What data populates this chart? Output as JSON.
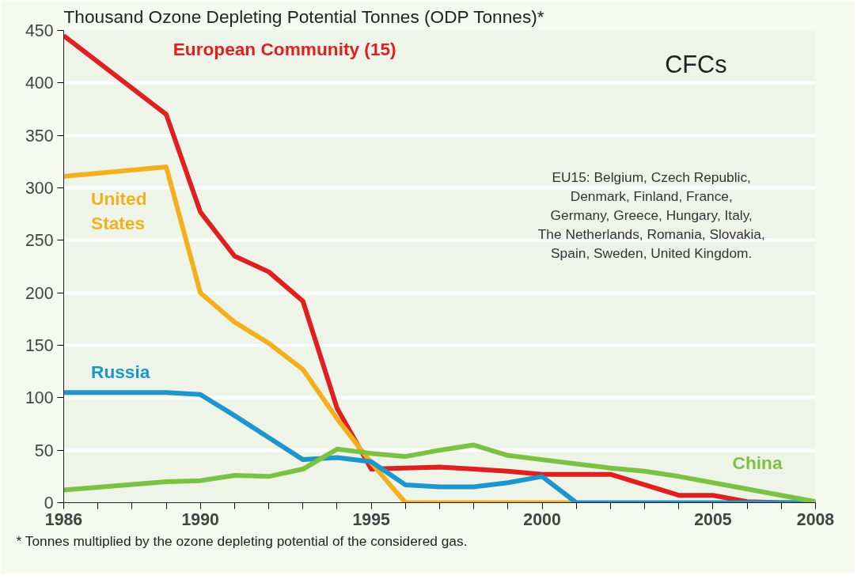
{
  "chart_data": {
    "type": "line",
    "title": "Thousand Ozone Depleting Potential Tonnes (ODP Tonnes)*",
    "x": [
      1986,
      1989,
      1990,
      1991,
      1992,
      1993,
      1994,
      1995,
      1996,
      1997,
      1998,
      1999,
      2000,
      2001,
      2002,
      2003,
      2004,
      2005,
      2006,
      2007,
      2008
    ],
    "series": [
      {
        "name": "European Community (15)",
        "color": "#e02020",
        "values": [
          445,
          370,
          277,
          235,
          220,
          192,
          90,
          32,
          33,
          34,
          32,
          30,
          27,
          27,
          27,
          17,
          7,
          7,
          1,
          0,
          0
        ]
      },
      {
        "name": "United States",
        "color": "#f2b01e",
        "x": [
          1986,
          1989,
          1990,
          1991,
          1992,
          1993,
          1994,
          1995,
          1996,
          1997,
          1998,
          1999,
          2000,
          2001
        ],
        "values": [
          311,
          320,
          200,
          172,
          152,
          127,
          80,
          38,
          0,
          0,
          0,
          0,
          0,
          0
        ]
      },
      {
        "name": "Russia",
        "color": "#1e96cc",
        "values": [
          105,
          105,
          103,
          83,
          62,
          41,
          43,
          39,
          17,
          15,
          15,
          19,
          25,
          0,
          0,
          0,
          0,
          0,
          0,
          0,
          0
        ]
      },
      {
        "name": "China",
        "color": "#7cc242",
        "values": [
          12,
          20,
          21,
          26,
          25,
          32,
          51,
          47,
          44,
          50,
          55,
          45,
          41,
          37,
          33,
          30,
          25,
          19,
          13,
          7,
          1
        ]
      }
    ],
    "xlim": [
      1986,
      2008
    ],
    "xticks": [
      1986,
      {
        "value": 1987,
        "label": null
      },
      {
        "value": 1988,
        "label": null
      },
      {
        "value": 1989,
        "label": null
      },
      1990,
      {
        "value": 1991,
        "label": null
      },
      {
        "value": 1992,
        "label": null
      },
      {
        "value": 1993,
        "label": null
      },
      {
        "value": 1994,
        "label": null
      },
      1995,
      {
        "value": 1996,
        "label": null
      },
      {
        "value": 1997,
        "label": null
      },
      {
        "value": 1998,
        "label": null
      },
      {
        "value": 1999,
        "label": null
      },
      2000,
      {
        "value": 2001,
        "label": null
      },
      {
        "value": 2002,
        "label": null
      },
      {
        "value": 2003,
        "label": null
      },
      {
        "value": 2004,
        "label": null
      },
      2005,
      {
        "value": 2006,
        "label": null
      },
      {
        "value": 2007,
        "label": null
      },
      2008
    ],
    "ylim": [
      0,
      450
    ],
    "yticks": [
      0,
      50,
      100,
      150,
      200,
      250,
      300,
      350,
      400,
      450
    ],
    "grid": "y",
    "legend": false,
    "marker": "none",
    "line_style": "solid",
    "annotations": [
      "CFCs",
      "EU15: Belgium, Czech Republic,\nDenmark, Finland, France,\nGermany, Greece, Hungary, Italy,\nThe Netherlands, Romania, Slovakia,\nSpain, Sweden, United Kingdom.",
      "* Tonnes multiplied by the ozone depleting potential of the considered gas."
    ]
  }
}
